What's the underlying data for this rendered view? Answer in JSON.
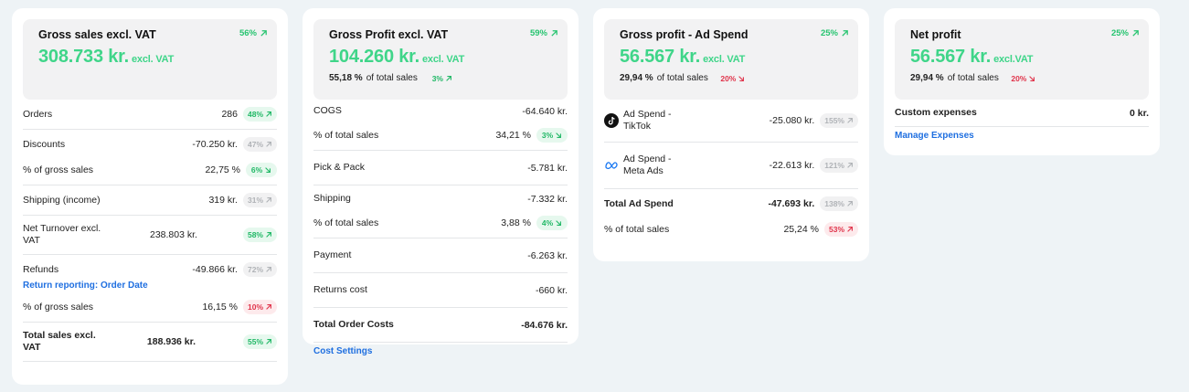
{
  "cards": [
    {
      "title": "Gross sales excl. VAT",
      "value": "308.733 kr.",
      "unit": "excl. VAT",
      "change": "56%",
      "rows": {
        "orders": {
          "label": "Orders",
          "value": "286",
          "badge": "48%"
        },
        "discounts": {
          "label": "Discounts",
          "value": "-70.250 kr.",
          "badge": "47%"
        },
        "discounts_pct": {
          "label": "% of gross sales",
          "value": "22,75 %",
          "badge": "6%"
        },
        "shipping": {
          "label": "Shipping (income)",
          "value": "319 kr.",
          "badge": "31%"
        },
        "net_turnover": {
          "label": "Net Turnover excl. VAT",
          "value": "238.803 kr.",
          "badge": "58%"
        },
        "refunds": {
          "label": "Refunds",
          "value": "-49.866 kr.",
          "badge": "72%"
        },
        "return_link": "Return reporting: Order Date",
        "refunds_pct": {
          "label": "% of gross sales",
          "value": "16,15 %",
          "badge": "10%"
        },
        "total": {
          "label": "Total sales excl. VAT",
          "value": "188.936 kr.",
          "badge": "55%"
        }
      }
    },
    {
      "title": "Gross Profit excl. VAT",
      "value": "104.260 kr.",
      "unit": "excl. VAT",
      "change": "59%",
      "sub_pct": "55,18 %",
      "sub_text": "of total sales",
      "sub_change": "3%",
      "rows": {
        "cogs": {
          "label": "COGS",
          "value": "-64.640 kr."
        },
        "cogs_pct": {
          "label": "% of total sales",
          "value": "34,21 %",
          "badge": "3%"
        },
        "pick": {
          "label": "Pick & Pack",
          "value": "-5.781 kr."
        },
        "shipping": {
          "label": "Shipping",
          "value": "-7.332 kr."
        },
        "shipping_pct": {
          "label": "% of total sales",
          "value": "3,88 %",
          "badge": "4%"
        },
        "payment": {
          "label": "Payment",
          "value": "-6.263 kr."
        },
        "returns": {
          "label": "Returns cost",
          "value": "-660 kr."
        },
        "total": {
          "label": "Total Order Costs",
          "value": "-84.676 kr."
        },
        "link": "Cost Settings"
      }
    },
    {
      "title": "Gross profit - Ad Spend",
      "value": "56.567 kr.",
      "unit": "excl. VAT",
      "change": "25%",
      "sub_pct": "29,94 %",
      "sub_text": "of total sales",
      "sub_change": "20%",
      "rows": {
        "tiktok": {
          "label": "Ad Spend - TikTok",
          "value": "-25.080 kr.",
          "badge": "155%",
          "icon": "tiktok-icon"
        },
        "meta": {
          "label": "Ad Spend - Meta Ads",
          "value": "-22.613 kr.",
          "badge": "121%",
          "icon": "meta-icon"
        },
        "total": {
          "label": "Total Ad Spend",
          "value": "-47.693 kr.",
          "badge": "138%"
        },
        "total_pct": {
          "label": "% of total sales",
          "value": "25,24 %",
          "badge": "53%"
        }
      }
    },
    {
      "title": "Net profit",
      "value": "56.567 kr.",
      "unit": "excl.VAT",
      "change": "25%",
      "sub_pct": "29,94 %",
      "sub_text": "of total sales",
      "sub_change": "20%",
      "rows": {
        "custom": {
          "label": "Custom expenses",
          "value": "0 kr."
        },
        "link": "Manage Expenses"
      }
    }
  ],
  "colors": {
    "green": "#3fd589",
    "red": "#e0344b",
    "link": "#1f6fe0"
  }
}
